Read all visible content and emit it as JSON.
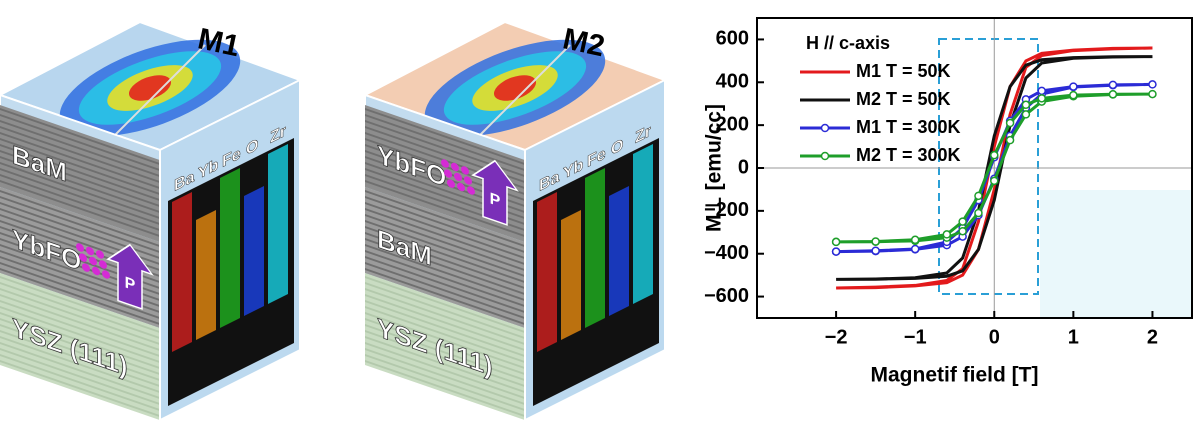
{
  "illustrations": [
    {
      "title": "M1",
      "layers": [
        "BaM",
        "YbFO",
        "YSZ (111)"
      ],
      "elements": [
        "Ba",
        "Yb",
        "Fe",
        "O",
        "Zr"
      ],
      "arrow": "P"
    },
    {
      "title": "M2",
      "layers": [
        "YbFO",
        "BaM",
        "YSZ (111)"
      ],
      "elements": [
        "Ba",
        "Yb",
        "Fe",
        "O",
        "Zr"
      ],
      "arrow": "P"
    }
  ],
  "chart_data": {
    "type": "line",
    "xlabel": "Magnetif field [T]",
    "ylabel": "M⊥ [emu/cc]",
    "legend_title": "H // c-axis",
    "x": [
      -2,
      -1.5,
      -1,
      -0.6,
      -0.4,
      -0.2,
      0,
      0.2,
      0.4,
      0.6,
      1,
      1.5,
      2,
      1.5,
      1,
      0.6,
      0.4,
      0.2,
      0,
      -0.2,
      -0.4,
      -0.6,
      -1,
      -1.5,
      -2
    ],
    "series": [
      {
        "name": "M1 T = 50K",
        "color": "#e31a1c",
        "marker": null,
        "values": [
          -560,
          -558,
          -550,
          -535,
          -500,
          -380,
          -100,
          250,
          470,
          525,
          548,
          556,
          560,
          558,
          550,
          535,
          500,
          380,
          100,
          -250,
          -470,
          -525,
          -548,
          -556,
          -560
        ]
      },
      {
        "name": "M2 T = 50K",
        "color": "#111111",
        "marker": null,
        "values": [
          -520,
          -519,
          -515,
          -505,
          -480,
          -380,
          -150,
          200,
          420,
          490,
          512,
          518,
          520,
          519,
          515,
          505,
          480,
          380,
          150,
          -200,
          -420,
          -490,
          -512,
          -518,
          -520
        ]
      },
      {
        "name": "M1 T = 300K",
        "color": "#2b2bd6",
        "marker": "o",
        "values": [
          -390,
          -388,
          -380,
          -360,
          -320,
          -220,
          -50,
          150,
          280,
          345,
          378,
          386,
          390,
          388,
          380,
          360,
          320,
          220,
          50,
          -150,
          -280,
          -345,
          -378,
          -386,
          -390
        ]
      },
      {
        "name": "M2 T = 300K",
        "color": "#1e9e2a",
        "marker": "o",
        "values": [
          -345,
          -344,
          -340,
          -325,
          -295,
          -210,
          -60,
          130,
          250,
          310,
          335,
          343,
          345,
          344,
          340,
          325,
          295,
          210,
          60,
          -130,
          -250,
          -310,
          -335,
          -343,
          -345
        ]
      }
    ],
    "xlim": [
      -3,
      2.5
    ],
    "ylim": [
      -700,
      700
    ],
    "xticks": [
      {
        "value": -2,
        "label": "−2"
      },
      {
        "value": -1,
        "label": "−1"
      },
      0,
      1,
      2
    ],
    "yticks": [
      {
        "value": -600,
        "label": "−600"
      },
      {
        "value": -400,
        "label": "−400"
      },
      {
        "value": -200,
        "label": "−200"
      },
      0,
      200,
      400,
      600
    ],
    "grid": false
  }
}
